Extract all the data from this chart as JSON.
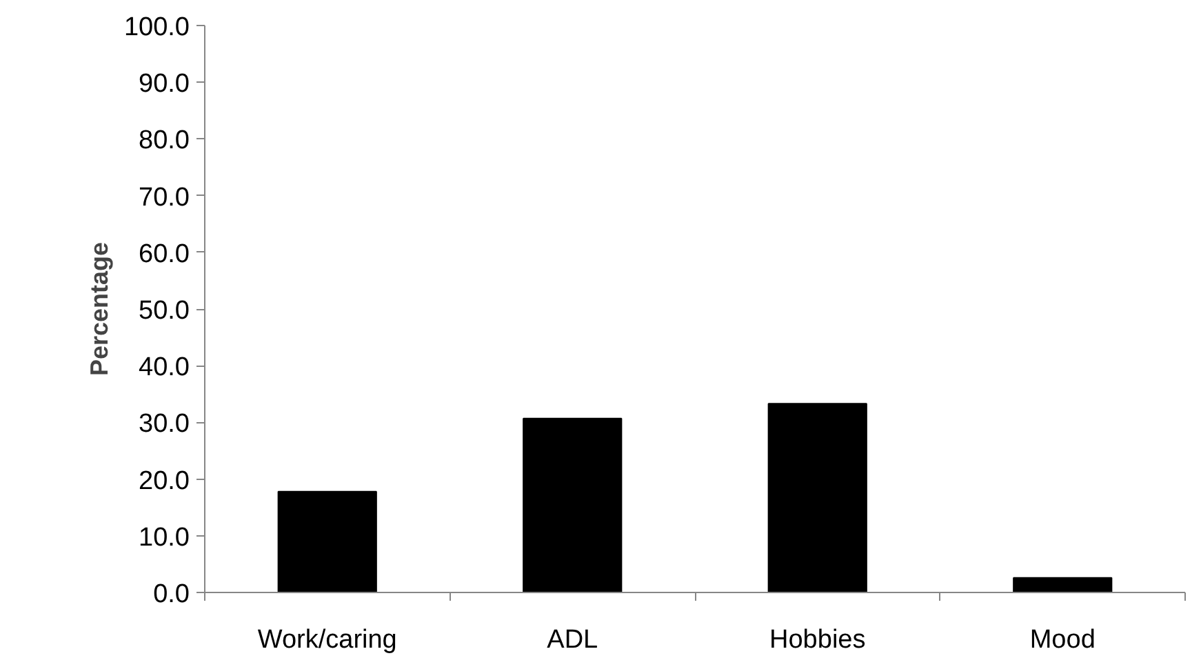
{
  "chart_data": {
    "type": "bar",
    "ylabel": "Percentage",
    "categories": [
      "Work/caring",
      "ADL",
      "Hobbies",
      "Mood"
    ],
    "values": [
      17.8,
      30.7,
      33.3,
      2.6
    ],
    "color": "#000000",
    "ylim": [
      0,
      100
    ],
    "yticks": [
      {
        "value": 0,
        "label": "0.0"
      },
      {
        "value": 10,
        "label": "10.0"
      },
      {
        "value": 20,
        "label": "20.0"
      },
      {
        "value": 30,
        "label": "30.0"
      },
      {
        "value": 40,
        "label": "40.0"
      },
      {
        "value": 50,
        "label": "50.0"
      },
      {
        "value": 60,
        "label": "60.0"
      },
      {
        "value": 70,
        "label": "70.0"
      },
      {
        "value": 80,
        "label": "80.0"
      },
      {
        "value": 90,
        "label": "90.0"
      },
      {
        "value": 100,
        "label": "100.0"
      }
    ],
    "grid": false
  }
}
